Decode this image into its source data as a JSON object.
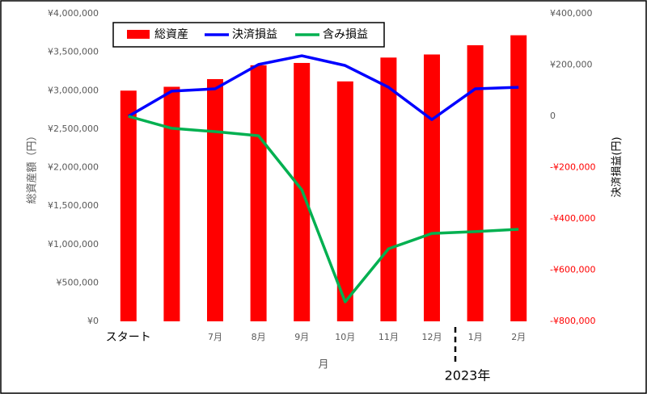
{
  "chart_data": {
    "type": "bar_line",
    "categories": [
      "スタート",
      null,
      "7月",
      "8月",
      "9月",
      "10月",
      "11月",
      "12月",
      "1月",
      "2月"
    ],
    "x_label": "月",
    "y_label": "総資産額（円）",
    "y2_label": "決済損益(円)",
    "annotation": "2023年",
    "series": [
      {
        "name": "総資産",
        "type": "bar",
        "color": "#ff0000",
        "values": [
          3000000,
          3050000,
          3150000,
          3330000,
          3360000,
          3120000,
          3430000,
          3470000,
          3590000,
          3720000
        ]
      },
      {
        "name": "決済損益",
        "type": "line",
        "axis": "y2",
        "color": "#0000ff",
        "values": [
          0,
          98000,
          107000,
          202000,
          236000,
          198000,
          113000,
          -13000,
          107000,
          113000
        ]
      },
      {
        "name": "含み損益",
        "type": "line",
        "axis": "y2",
        "color": "#00b050",
        "values": [
          0,
          -47000,
          -60000,
          -76000,
          -287000,
          -724000,
          -517000,
          -457000,
          -450000,
          -441000
        ]
      }
    ],
    "ylim": [
      0,
      4000000
    ],
    "yticks": [
      {
        "value": 0,
        "label": "¥0"
      },
      {
        "value": 500000,
        "label": "¥500,000"
      },
      {
        "value": 1000000,
        "label": "¥1,000,000"
      },
      {
        "value": 1500000,
        "label": "¥1,500,000"
      },
      {
        "value": 2000000,
        "label": "¥2,000,000"
      },
      {
        "value": 2500000,
        "label": "¥2,500,000"
      },
      {
        "value": 3000000,
        "label": "¥3,000,000"
      },
      {
        "value": 3500000,
        "label": "¥3,500,000"
      },
      {
        "value": 4000000,
        "label": "¥4,000,000"
      }
    ],
    "y2lim": [
      -800000,
      400000
    ],
    "y2ticks": [
      {
        "value": -800000,
        "label": "-¥800,000"
      },
      {
        "value": -600000,
        "label": "-¥600,000"
      },
      {
        "value": -400000,
        "label": "-¥400,000"
      },
      {
        "value": -200000,
        "label": "-¥200,000"
      },
      0,
      {
        "value": 200000,
        "label": "¥200,000"
      },
      {
        "value": 400000,
        "label": "¥400,000"
      }
    ],
    "negative_tick_color": "#ff0000",
    "legend": "top-left"
  }
}
